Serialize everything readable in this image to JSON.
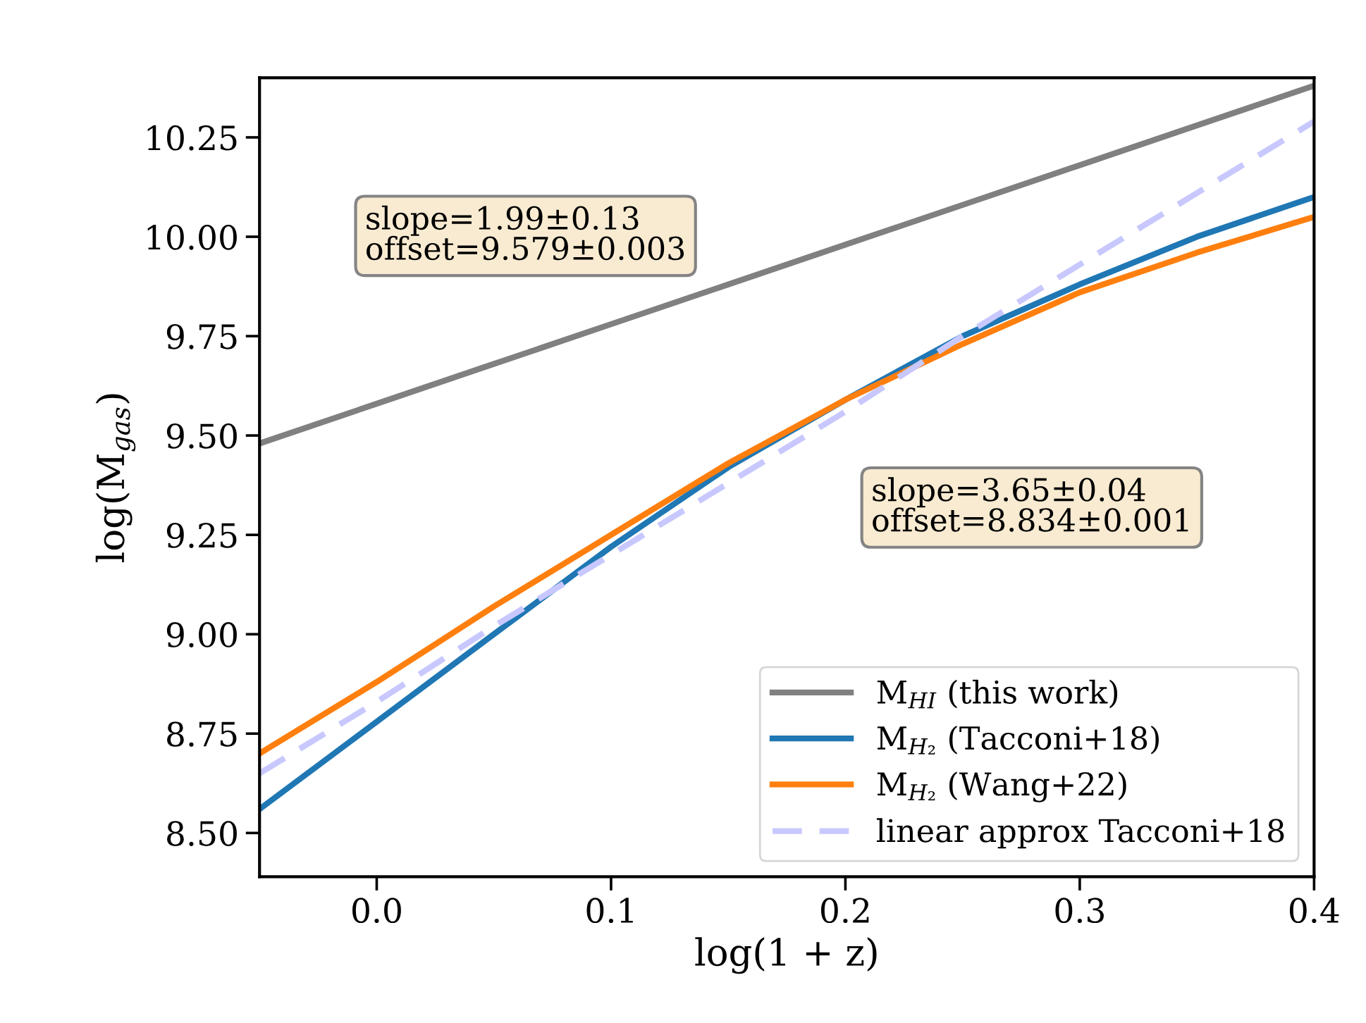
{
  "chart_data": {
    "type": "line",
    "xlabel": "log(1 + z)",
    "ylabel": "log(M$_{gas}$)",
    "x": [
      -0.05,
      0.0,
      0.05,
      0.1,
      0.15,
      0.2,
      0.25,
      0.3,
      0.35,
      0.4
    ],
    "series": [
      {
        "name": "M$_{HI}$ (this work)",
        "color": "#808080",
        "values": [
          9.48,
          9.58,
          9.68,
          9.78,
          9.88,
          9.98,
          10.08,
          10.18,
          10.28,
          10.38
        ]
      },
      {
        "name": "M$_{H₂}$ (Tacconi+18)",
        "color": "#1f77b4",
        "values": [
          8.56,
          8.78,
          9.0,
          9.22,
          9.42,
          9.59,
          9.75,
          9.88,
          10.0,
          10.1
        ]
      },
      {
        "name": "M$_{H₂}$ (Wang+22)",
        "color": "#ff7f0e",
        "values": [
          8.7,
          8.88,
          9.07,
          9.25,
          9.43,
          9.59,
          9.73,
          9.86,
          9.96,
          10.05
        ]
      },
      {
        "name": "linear approx Tacconi+18",
        "color": "#c8c8ff",
        "line_style": "dashed",
        "values": [
          8.65,
          8.83,
          9.02,
          9.2,
          9.38,
          9.56,
          9.75,
          9.93,
          10.11,
          10.29
        ]
      }
    ],
    "xlim": [
      -0.05,
      0.4
    ],
    "ylim": [
      8.39,
      10.4
    ],
    "xticks": [
      {
        "value": 0.0,
        "label": "0.0"
      },
      0.1,
      0.2,
      0.3,
      0.4
    ],
    "yticks": [
      {
        "value": 8.5,
        "label": "8.50"
      },
      8.75,
      {
        "value": 9.0,
        "label": "9.00"
      },
      9.25,
      {
        "value": 9.5,
        "label": "9.50"
      },
      9.75,
      {
        "value": 10.0,
        "label": "10.00"
      },
      10.25
    ],
    "annotations": [
      "slope=1.99±0.13\noffset=9.579±0.003",
      "slope=3.65±0.04\noffset=8.834±0.001"
    ],
    "legend": "lower right",
    "grid": false
  }
}
